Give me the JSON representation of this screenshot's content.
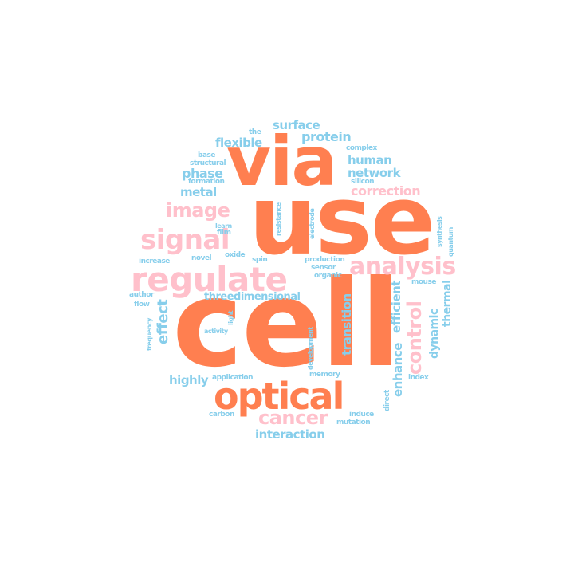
{
  "palette": {
    "orange": "#ff7f50",
    "pink": "#ffc0cb",
    "blue": "#87ceeb",
    "background": "#ffffff"
  },
  "words": {
    "cell": "cell",
    "use": "use",
    "via": "via",
    "regulate": "regulate",
    "signal": "signal",
    "optical": "optical",
    "image": "image",
    "analysis": "analysis",
    "control": "control",
    "cancer": "cancer",
    "correction": "correction",
    "enhance": "enhance",
    "interaction": "interaction",
    "effect": "effect",
    "efficient": "efficient",
    "transition": "transition",
    "protein": "protein",
    "surface": "surface",
    "flexible": "flexible",
    "human": "human",
    "network": "network",
    "phase": "phase",
    "metal": "metal",
    "threedimensional": "threedimensional",
    "highly": "highly",
    "dynamic": "dynamic",
    "thermal": "thermal",
    "the": "the",
    "complex": "complex",
    "base": "base",
    "structural": "structural",
    "silicon": "silicon",
    "formation": "formation",
    "film": "film",
    "learn": "learn",
    "resistance": "resistance",
    "electrode": "electrode",
    "synthesis": "synthesis",
    "quantum": "quantum",
    "increase": "increase",
    "novel": "novel",
    "oxide": "oxide",
    "spin": "spin",
    "production": "production",
    "sensor": "sensor",
    "organic": "organic",
    "mouse": "mouse",
    "author": "author",
    "flow": "flow",
    "frequency": "frequency",
    "light": "light",
    "activity": "activity",
    "development": "development",
    "application": "application",
    "memory": "memory",
    "index": "index",
    "direct": "direct",
    "carbon": "carbon",
    "induce": "induce",
    "mutation": "mutation"
  }
}
